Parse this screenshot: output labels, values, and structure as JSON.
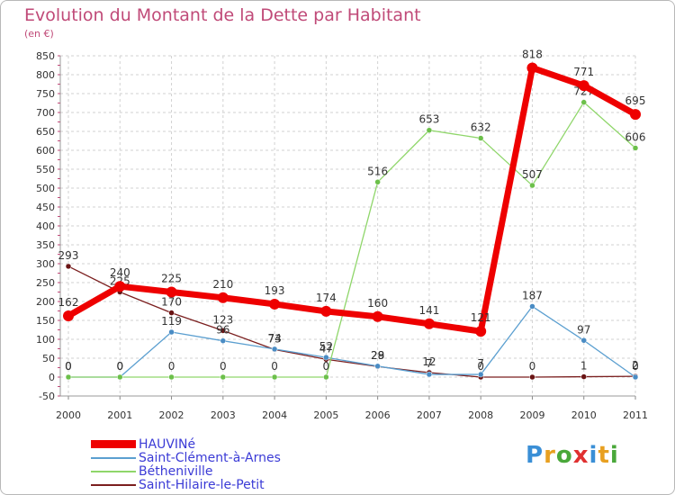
{
  "title": "Evolution du Montant de la Dette par Habitant",
  "unit": "(en €)",
  "logo": {
    "text": "Proxiti",
    "letter_colors": [
      "#3a8fd6",
      "#e8a020",
      "#4aa83a",
      "#e03030",
      "#3a8fd6",
      "#e8a020",
      "#4aa83a"
    ]
  },
  "chart_data": {
    "type": "line",
    "x": [
      "2000",
      "2001",
      "2002",
      "2003",
      "2004",
      "2005",
      "2006",
      "2007",
      "2008",
      "2009",
      "2010",
      "2011"
    ],
    "ylim": [
      -50,
      850
    ],
    "yticks": [
      -50,
      0,
      50,
      100,
      150,
      200,
      250,
      300,
      350,
      400,
      450,
      500,
      550,
      600,
      650,
      700,
      750,
      800,
      850
    ],
    "grid": true,
    "legend_position": "bottom-left",
    "series": [
      {
        "name": "Saint-Hilaire-le-Petit",
        "color": "#7b1f1f",
        "point_color": "#6a1414",
        "values": [
          293,
          225,
          170,
          123,
          73,
          47,
          28,
          12,
          0,
          0,
          1,
          2
        ],
        "labels": [
          "293",
          "225",
          "170",
          "123",
          "73",
          "47",
          "28",
          "12",
          "0",
          "0",
          "1",
          "2"
        ]
      },
      {
        "name": "Saint-Clément-à-Arnes",
        "color": "#5b9fd0",
        "point_color": "#4a8cc4",
        "values": [
          0,
          0,
          119,
          96,
          74,
          52,
          29,
          7,
          7,
          187,
          97,
          0
        ],
        "labels": [
          "0",
          "0",
          "119",
          "96",
          "74",
          "52",
          "29",
          "7",
          "7",
          "187",
          "97",
          "0"
        ]
      },
      {
        "name": "Bétheniville",
        "color": "#8fd66a",
        "point_color": "#6cc04a",
        "values": [
          0,
          0,
          0,
          0,
          0,
          0,
          516,
          653,
          632,
          507,
          727,
          606
        ],
        "labels": [
          "0",
          "0",
          "0",
          "0",
          "0",
          "0",
          "516",
          "653",
          "632",
          "507",
          "727",
          "606"
        ]
      },
      {
        "name": "HAUVINé",
        "color": "#ee0000",
        "point_color": "#ee0000",
        "values": [
          162,
          240,
          225,
          210,
          193,
          174,
          160,
          141,
          121,
          818,
          771,
          695
        ],
        "labels": [
          "162",
          "240",
          "225",
          "210",
          "193",
          "174",
          "160",
          "141",
          "121",
          "818",
          "771",
          "695"
        ]
      }
    ],
    "legend_order": [
      "HAUVINé",
      "Saint-Clément-à-Arnes",
      "Bétheniville",
      "Saint-Hilaire-le-Petit"
    ]
  }
}
